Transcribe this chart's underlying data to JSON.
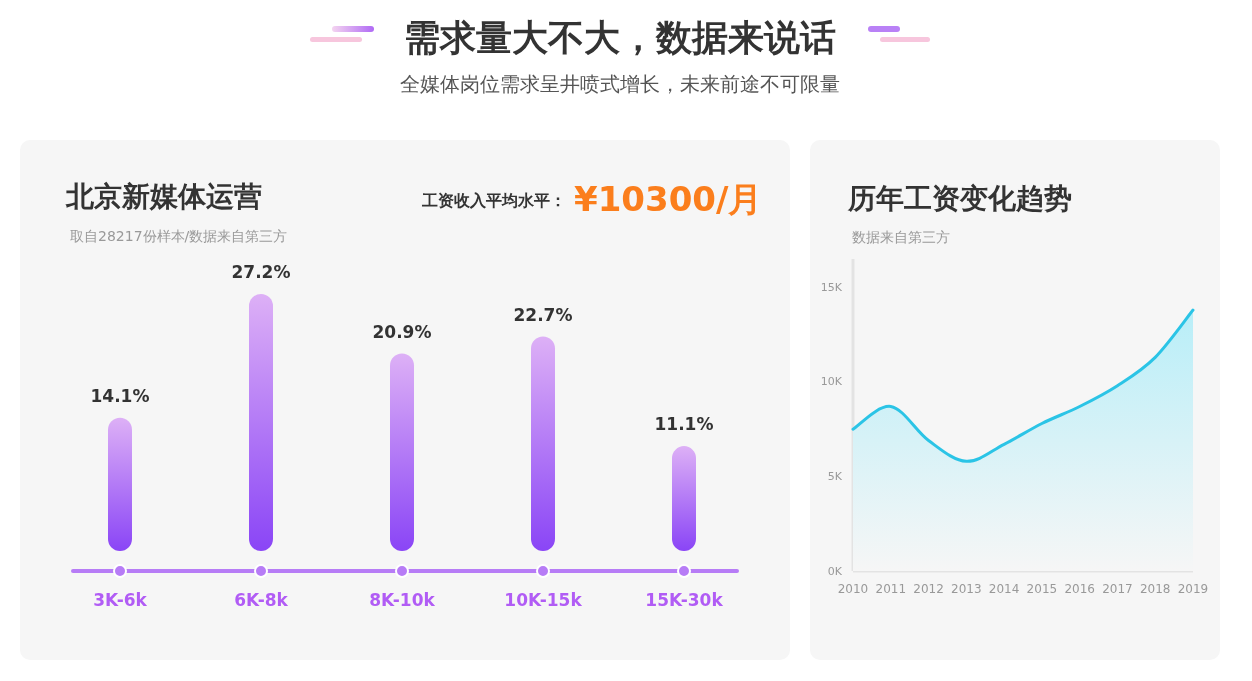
{
  "chart_data": [
    {
      "type": "other",
      "title": "需求量大不大，数据来说话",
      "subtitle": "全媒体岗位需求呈井喷式增长，未来前途不可限量"
    },
    {
      "type": "bar",
      "title": "北京新媒体运营",
      "subtitle": "取自28217份样本/数据来自第三方",
      "annotations": [
        "工资收入平均水平：",
        "¥10300/月"
      ],
      "categories": [
        "3K-6k",
        "6K-8k",
        "8K-10k",
        "10K-15k",
        "15K-30k"
      ],
      "values": [
        14.1,
        27.2,
        20.9,
        22.7,
        11.1
      ],
      "value_labels": [
        "14.1%",
        "27.2%",
        "20.9%",
        "22.7%",
        "11.1%"
      ],
      "color": "#9a5cf7"
    },
    {
      "type": "area",
      "title": "历年工资变化趋势",
      "subtitle": "数据来自第三方",
      "x": [
        2010,
        2011,
        2012,
        2013,
        2014,
        2015,
        2016,
        2017,
        2018,
        2019
      ],
      "xlim": [
        2010,
        2019
      ],
      "xticks": [
        2010,
        2011,
        2012,
        2013,
        2014,
        2015,
        2016,
        2017,
        2018,
        2019
      ],
      "values": [
        7.5,
        8.7,
        6.9,
        5.8,
        6.7,
        7.8,
        8.7,
        9.8,
        11.3,
        13.8
      ],
      "color": "#2bc4e6",
      "ylim": [
        0,
        16.5
      ],
      "yticks": [
        {
          "value": 0,
          "label": "0K"
        },
        {
          "value": 5,
          "label": "5K"
        },
        {
          "value": 10,
          "label": "10K"
        },
        {
          "value": 15,
          "label": "15K"
        }
      ]
    }
  ]
}
